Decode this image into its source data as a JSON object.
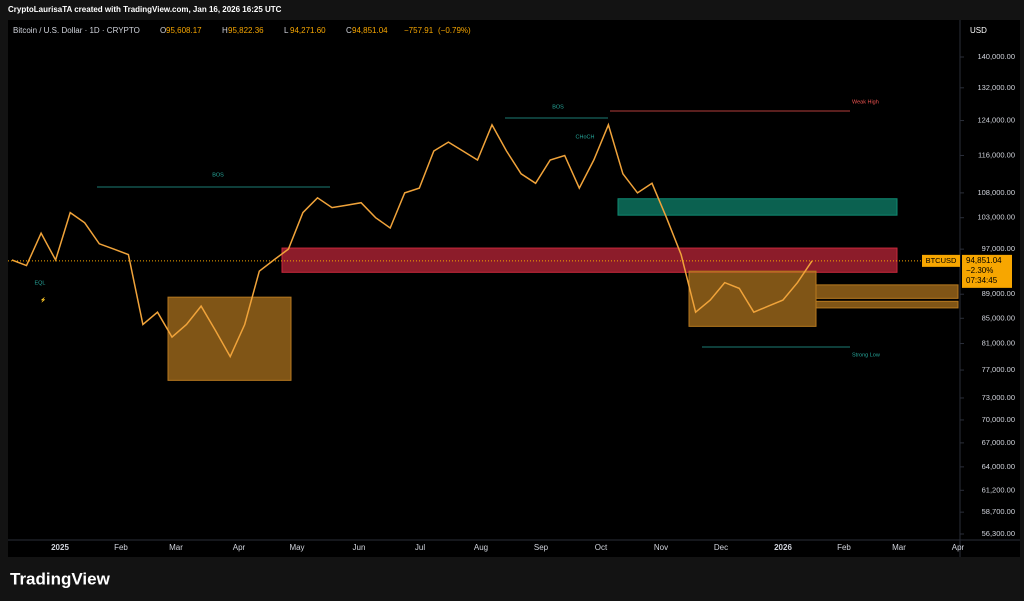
{
  "header": {
    "byline": "CryptoLaurisaTA created with TradingView.com, Jan 16, 2026 16:25 UTC",
    "symbol_line": "Bitcoin / U.S. Dollar · 1D · CRYPTO",
    "ohlc": [
      {
        "key": "O",
        "value": 95608.17,
        "label": "95,608.17"
      },
      {
        "key": "H",
        "value": 95822.36,
        "label": "95,822.36"
      },
      {
        "key": "L",
        "value": 94271.6,
        "label": "94,271.60"
      },
      {
        "key": "C",
        "value": 94851.04,
        "label": "94,851.04"
      }
    ],
    "change": {
      "value": -757.91,
      "label": "−757.91"
    },
    "change_pct": {
      "value": -0.79,
      "label": "(−0.79%)"
    }
  },
  "chart_data": {
    "type": "line",
    "currency": "USD",
    "log_scale": true,
    "color": "#f0a33a",
    "x_labels": [
      "2025",
      "Feb",
      "Mar",
      "Apr",
      "May",
      "Jun",
      "Jul",
      "Aug",
      "Sep",
      "Oct",
      "Nov",
      "Dec",
      "2026",
      "Feb",
      "Mar",
      "Apr"
    ],
    "values": [
      95000,
      94000,
      100000,
      95000,
      104000,
      102000,
      98000,
      97000,
      96000,
      84000,
      86000,
      82000,
      84000,
      87000,
      83000,
      79000,
      84000,
      93000,
      95000,
      97000,
      104000,
      107000,
      105000,
      105500,
      106000,
      103000,
      101000,
      108000,
      109000,
      117000,
      119000,
      117000,
      115000,
      123000,
      117000,
      112000,
      110000,
      115000,
      116000,
      109000,
      115000,
      123000,
      112000,
      108000,
      110000,
      103000,
      96000,
      86000,
      88000,
      91000,
      90000,
      86000,
      87000,
      88000,
      91000,
      94851.04
    ],
    "ylim": [
      56300,
      140000
    ],
    "yticks": [
      {
        "value": 140000,
        "label": "140,000.00"
      },
      {
        "value": 132000,
        "label": "132,000.00"
      },
      {
        "value": 124000,
        "label": "124,000.00"
      },
      {
        "value": 116000,
        "label": "116,000.00"
      },
      {
        "value": 108000,
        "label": "108,000.00"
      },
      {
        "value": 103000,
        "label": "103,000.00"
      },
      {
        "value": 97000,
        "label": "97,000.00"
      },
      {
        "value": 89000,
        "label": "89,000.00"
      },
      {
        "value": 85000,
        "label": "85,000.00"
      },
      {
        "value": 81000,
        "label": "81,000.00"
      },
      {
        "value": 77000,
        "label": "77,000.00"
      },
      {
        "value": 73000,
        "label": "73,000.00"
      },
      {
        "value": 70000,
        "label": "70,000.00"
      },
      {
        "value": 67000,
        "label": "67,000.00"
      },
      {
        "value": 64000,
        "label": "64,000.00"
      },
      {
        "value": 61200,
        "label": "61,200.00"
      },
      {
        "value": 58700,
        "label": "58,700.00"
      },
      {
        "value": 56300,
        "label": "56,300.00"
      }
    ],
    "zones": [
      {
        "low": 92800,
        "high": 97200,
        "color": "#c8283c"
      },
      {
        "low": 103500,
        "high": 106800,
        "color": "#0f8a72"
      },
      {
        "low": 75500,
        "high": 88500,
        "color": "#b7791f"
      },
      {
        "low": 83700,
        "high": 93000,
        "color": "#b7791f"
      },
      {
        "low": 88300,
        "high": 90600,
        "color": "#b7791f"
      },
      {
        "low": 86700,
        "high": 87800,
        "color": "#b7791f"
      }
    ],
    "annotations": [
      "BOS",
      "BOS",
      "Weak High",
      "Strong Low",
      "EQL",
      "CHoCH"
    ],
    "price_tag": {
      "symbol": "BTCUSD",
      "price": {
        "value": 94851.04,
        "label": "94,851.04"
      },
      "change": {
        "value": -2.3,
        "label": "−2.30%"
      },
      "countdown": "07:34:45"
    }
  },
  "footer": {
    "logo": "TradingView"
  }
}
